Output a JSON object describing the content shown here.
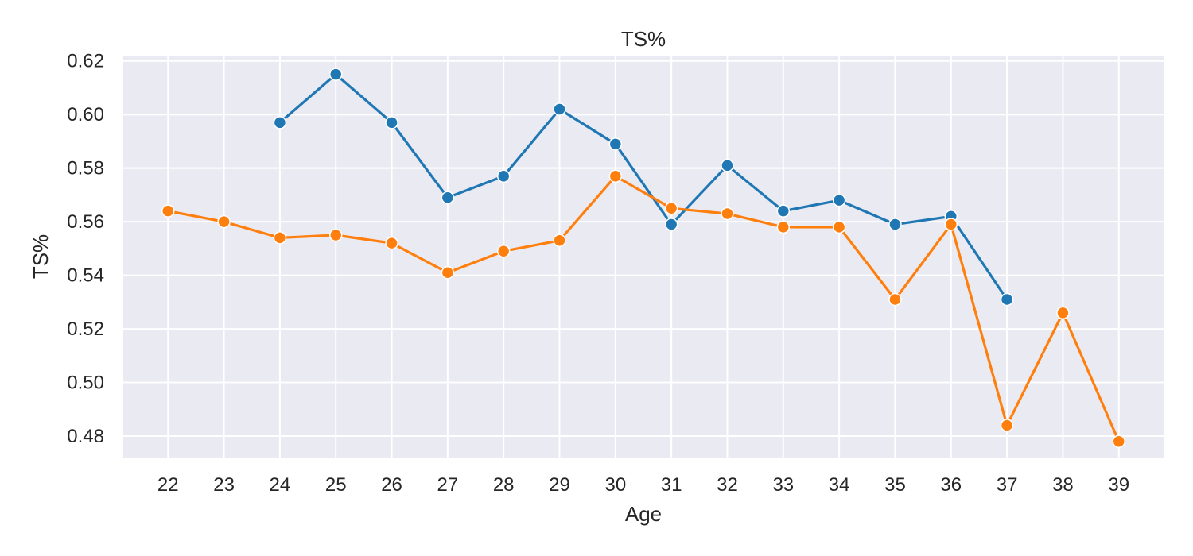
{
  "chart_data": {
    "type": "line",
    "title": "TS%",
    "xlabel": "Age",
    "ylabel": "TS%",
    "x": [
      22,
      23,
      24,
      25,
      26,
      27,
      28,
      29,
      30,
      31,
      32,
      33,
      34,
      35,
      36,
      37,
      38,
      39
    ],
    "xlim": [
      21.2,
      39.8
    ],
    "ylim": [
      0.472,
      0.622
    ],
    "yticks": [
      "0.48",
      "0.50",
      "0.52",
      "0.54",
      "0.56",
      "0.58",
      "0.60",
      "0.62"
    ],
    "grid": true,
    "legend": "none",
    "series": [
      {
        "color": "#1f77b4",
        "x": [
          24,
          25,
          26,
          27,
          28,
          29,
          30,
          31,
          32,
          33,
          34,
          35,
          36,
          37
        ],
        "values": [
          0.597,
          0.615,
          0.597,
          0.569,
          0.577,
          0.602,
          0.589,
          0.559,
          0.581,
          0.564,
          0.568,
          0.559,
          0.562,
          0.531
        ]
      },
      {
        "color": "#ff7f0e",
        "x": [
          22,
          23,
          24,
          25,
          26,
          27,
          28,
          29,
          30,
          31,
          32,
          33,
          34,
          35,
          36,
          37,
          38,
          39
        ],
        "values": [
          0.564,
          0.56,
          0.554,
          0.555,
          0.552,
          0.541,
          0.549,
          0.553,
          0.577,
          0.565,
          0.563,
          0.558,
          0.558,
          0.531,
          0.559,
          0.484,
          0.526,
          0.478
        ]
      }
    ],
    "colors": {
      "background": "#eaeaf2",
      "grid": "#ffffff",
      "text": "#262626"
    }
  }
}
